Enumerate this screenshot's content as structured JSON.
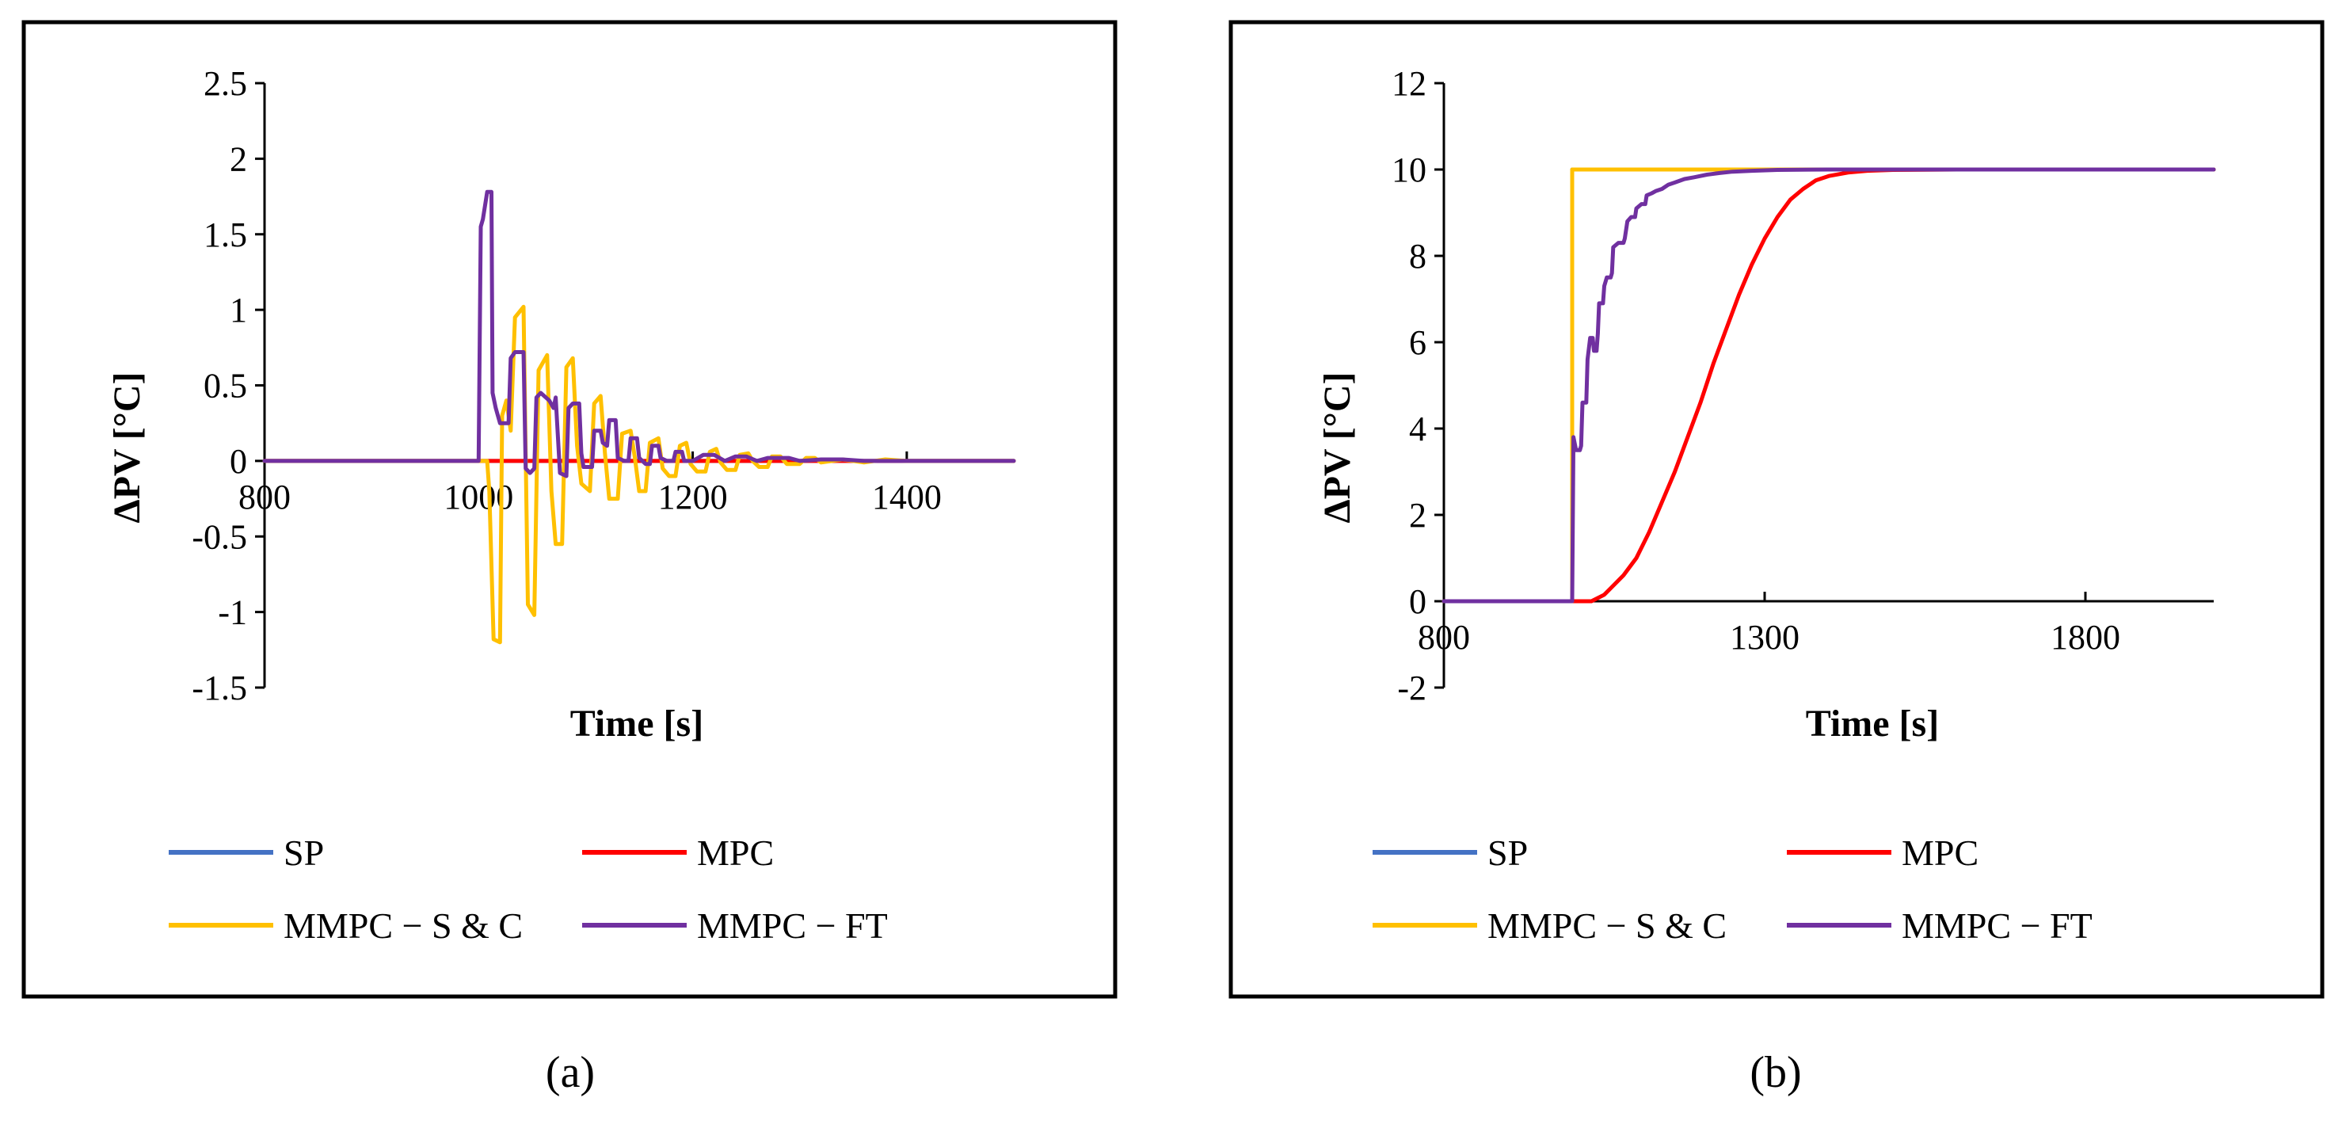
{
  "figure": {
    "captions": [
      "(a)",
      "(b)"
    ]
  },
  "chart_data": [
    {
      "type": "line",
      "panel": "(a)",
      "xlabel": "Time [s]",
      "ylabel": "ΔPV [°C]",
      "xlim": [
        800,
        1500
      ],
      "ylim": [
        -1.5,
        2.5
      ],
      "xticks": [
        800,
        1000,
        1200,
        1400
      ],
      "yticks": [
        -1.5,
        -1,
        -0.5,
        0,
        0.5,
        1,
        1.5,
        2,
        2.5
      ],
      "ytick_labels": [
        "-1.5",
        "-1",
        "-0.5",
        "0",
        "0.5",
        "1",
        "1.5",
        "2",
        "2.5"
      ],
      "legend_position": "bottom",
      "series": [
        {
          "name": "SP",
          "color": "#4472C4",
          "points": [
            [
              800,
              0
            ],
            [
              1500,
              0
            ]
          ]
        },
        {
          "name": "MPC",
          "color": "#FF0000",
          "points": [
            [
              800,
              0
            ],
            [
              1500,
              0
            ]
          ]
        },
        {
          "name": "MMPC − S & C",
          "color": "#FFC000",
          "points": [
            [
              800,
              0
            ],
            [
              1008,
              0
            ],
            [
              1010,
              -0.2
            ],
            [
              1014,
              -1.18
            ],
            [
              1020,
              -1.2
            ],
            [
              1022,
              0.3
            ],
            [
              1026,
              0.4
            ],
            [
              1030,
              0.2
            ],
            [
              1034,
              0.95
            ],
            [
              1042,
              1.02
            ],
            [
              1046,
              -0.95
            ],
            [
              1052,
              -1.02
            ],
            [
              1056,
              0.6
            ],
            [
              1064,
              0.7
            ],
            [
              1068,
              -0.2
            ],
            [
              1072,
              -0.55
            ],
            [
              1078,
              -0.55
            ],
            [
              1082,
              0.62
            ],
            [
              1088,
              0.68
            ],
            [
              1092,
              0.1
            ],
            [
              1096,
              -0.15
            ],
            [
              1104,
              -0.2
            ],
            [
              1108,
              0.38
            ],
            [
              1114,
              0.43
            ],
            [
              1118,
              0.05
            ],
            [
              1122,
              -0.25
            ],
            [
              1130,
              -0.25
            ],
            [
              1134,
              0.18
            ],
            [
              1142,
              0.2
            ],
            [
              1146,
              0.02
            ],
            [
              1150,
              -0.2
            ],
            [
              1156,
              -0.2
            ],
            [
              1160,
              0.12
            ],
            [
              1168,
              0.15
            ],
            [
              1172,
              -0.05
            ],
            [
              1178,
              -0.1
            ],
            [
              1184,
              -0.1
            ],
            [
              1188,
              0.1
            ],
            [
              1194,
              0.12
            ],
            [
              1198,
              -0.02
            ],
            [
              1204,
              -0.07
            ],
            [
              1212,
              -0.07
            ],
            [
              1216,
              0.06
            ],
            [
              1222,
              0.08
            ],
            [
              1226,
              -0.01
            ],
            [
              1232,
              -0.06
            ],
            [
              1240,
              -0.06
            ],
            [
              1244,
              0.04
            ],
            [
              1252,
              0.05
            ],
            [
              1256,
              0
            ],
            [
              1262,
              -0.04
            ],
            [
              1270,
              -0.04
            ],
            [
              1274,
              0.03
            ],
            [
              1282,
              0.03
            ],
            [
              1288,
              -0.02
            ],
            [
              1300,
              -0.02
            ],
            [
              1306,
              0.02
            ],
            [
              1314,
              0.02
            ],
            [
              1320,
              -0.01
            ],
            [
              1340,
              0.01
            ],
            [
              1360,
              -0.01
            ],
            [
              1380,
              0.01
            ],
            [
              1400,
              0
            ],
            [
              1500,
              0
            ]
          ]
        },
        {
          "name": "MMPC − FT",
          "color": "#7030A0",
          "points": [
            [
              800,
              0
            ],
            [
              1000,
              0
            ],
            [
              1002,
              1.55
            ],
            [
              1004,
              1.6
            ],
            [
              1008,
              1.78
            ],
            [
              1012,
              1.78
            ],
            [
              1013,
              0.45
            ],
            [
              1016,
              0.35
            ],
            [
              1020,
              0.25
            ],
            [
              1028,
              0.25
            ],
            [
              1030,
              0.68
            ],
            [
              1034,
              0.72
            ],
            [
              1042,
              0.72
            ],
            [
              1044,
              -0.05
            ],
            [
              1048,
              -0.08
            ],
            [
              1052,
              -0.05
            ],
            [
              1054,
              0.42
            ],
            [
              1058,
              0.45
            ],
            [
              1066,
              0.4
            ],
            [
              1070,
              0.35
            ],
            [
              1072,
              0.42
            ],
            [
              1076,
              -0.08
            ],
            [
              1082,
              -0.1
            ],
            [
              1084,
              0.35
            ],
            [
              1088,
              0.38
            ],
            [
              1094,
              0.38
            ],
            [
              1096,
              0.05
            ],
            [
              1098,
              -0.04
            ],
            [
              1106,
              -0.04
            ],
            [
              1108,
              0.2
            ],
            [
              1114,
              0.2
            ],
            [
              1116,
              0.12
            ],
            [
              1120,
              0.1
            ],
            [
              1122,
              0.27
            ],
            [
              1128,
              0.27
            ],
            [
              1130,
              0.02
            ],
            [
              1136,
              0
            ],
            [
              1140,
              0
            ],
            [
              1142,
              0.15
            ],
            [
              1148,
              0.15
            ],
            [
              1150,
              0.02
            ],
            [
              1156,
              -0.02
            ],
            [
              1160,
              -0.02
            ],
            [
              1162,
              0.1
            ],
            [
              1168,
              0.1
            ],
            [
              1170,
              0.02
            ],
            [
              1176,
              0
            ],
            [
              1182,
              0
            ],
            [
              1184,
              0.06
            ],
            [
              1190,
              0.06
            ],
            [
              1192,
              0
            ],
            [
              1200,
              0
            ],
            [
              1210,
              0.04
            ],
            [
              1220,
              0.04
            ],
            [
              1230,
              0
            ],
            [
              1240,
              0.03
            ],
            [
              1250,
              0.03
            ],
            [
              1260,
              0
            ],
            [
              1270,
              0.02
            ],
            [
              1290,
              0.02
            ],
            [
              1300,
              0
            ],
            [
              1320,
              0.01
            ],
            [
              1340,
              0.01
            ],
            [
              1360,
              0
            ],
            [
              1500,
              0
            ]
          ]
        }
      ]
    },
    {
      "type": "line",
      "panel": "(b)",
      "xlabel": "Time [s]",
      "ylabel": "ΔPV [°C]",
      "xlim": [
        800,
        2000
      ],
      "ylim": [
        -2,
        12
      ],
      "xticks": [
        800,
        1300,
        1800
      ],
      "yticks": [
        -2,
        0,
        2,
        4,
        6,
        8,
        10,
        12
      ],
      "ytick_labels": [
        "-2",
        "0",
        "2",
        "4",
        "6",
        "8",
        "10",
        "12"
      ],
      "legend_position": "bottom",
      "series": [
        {
          "name": "SP",
          "color": "#4472C4",
          "points": [
            [
              800,
              0
            ],
            [
              1000,
              0
            ],
            [
              1000,
              10
            ],
            [
              2000,
              10
            ]
          ]
        },
        {
          "name": "MPC",
          "color": "#FF0000",
          "points": [
            [
              800,
              0
            ],
            [
              1000,
              0
            ],
            [
              1030,
              0
            ],
            [
              1050,
              0.15
            ],
            [
              1080,
              0.6
            ],
            [
              1100,
              1.0
            ],
            [
              1120,
              1.6
            ],
            [
              1140,
              2.3
            ],
            [
              1160,
              3.0
            ],
            [
              1180,
              3.8
            ],
            [
              1200,
              4.6
            ],
            [
              1220,
              5.5
            ],
            [
              1240,
              6.3
            ],
            [
              1260,
              7.1
            ],
            [
              1280,
              7.8
            ],
            [
              1300,
              8.4
            ],
            [
              1320,
              8.9
            ],
            [
              1340,
              9.3
            ],
            [
              1360,
              9.55
            ],
            [
              1380,
              9.75
            ],
            [
              1400,
              9.85
            ],
            [
              1430,
              9.93
            ],
            [
              1460,
              9.97
            ],
            [
              1500,
              9.99
            ],
            [
              1600,
              10
            ],
            [
              2000,
              10
            ]
          ]
        },
        {
          "name": "MMPC − S & C",
          "color": "#FFC000",
          "points": [
            [
              800,
              0
            ],
            [
              1000,
              0
            ],
            [
              1000,
              10
            ],
            [
              2000,
              10
            ]
          ]
        },
        {
          "name": "MMPC − FT",
          "color": "#7030A0",
          "points": [
            [
              800,
              0
            ],
            [
              1000,
              0
            ],
            [
              1002,
              3.8
            ],
            [
              1006,
              3.5
            ],
            [
              1012,
              3.5
            ],
            [
              1014,
              3.6
            ],
            [
              1016,
              4.6
            ],
            [
              1022,
              4.6
            ],
            [
              1024,
              5.6
            ],
            [
              1028,
              6.1
            ],
            [
              1032,
              6.1
            ],
            [
              1034,
              5.8
            ],
            [
              1038,
              5.8
            ],
            [
              1040,
              6.2
            ],
            [
              1042,
              6.9
            ],
            [
              1048,
              6.9
            ],
            [
              1050,
              7.3
            ],
            [
              1054,
              7.5
            ],
            [
              1060,
              7.5
            ],
            [
              1062,
              7.6
            ],
            [
              1064,
              8.2
            ],
            [
              1072,
              8.3
            ],
            [
              1080,
              8.3
            ],
            [
              1082,
              8.4
            ],
            [
              1086,
              8.8
            ],
            [
              1092,
              8.9
            ],
            [
              1098,
              8.9
            ],
            [
              1100,
              9.1
            ],
            [
              1108,
              9.2
            ],
            [
              1114,
              9.2
            ],
            [
              1116,
              9.4
            ],
            [
              1124,
              9.45
            ],
            [
              1130,
              9.5
            ],
            [
              1140,
              9.55
            ],
            [
              1150,
              9.65
            ],
            [
              1160,
              9.7
            ],
            [
              1175,
              9.78
            ],
            [
              1190,
              9.82
            ],
            [
              1210,
              9.88
            ],
            [
              1230,
              9.92
            ],
            [
              1250,
              9.95
            ],
            [
              1280,
              9.97
            ],
            [
              1320,
              9.99
            ],
            [
              1400,
              10
            ],
            [
              2000,
              10
            ]
          ]
        }
      ]
    }
  ]
}
